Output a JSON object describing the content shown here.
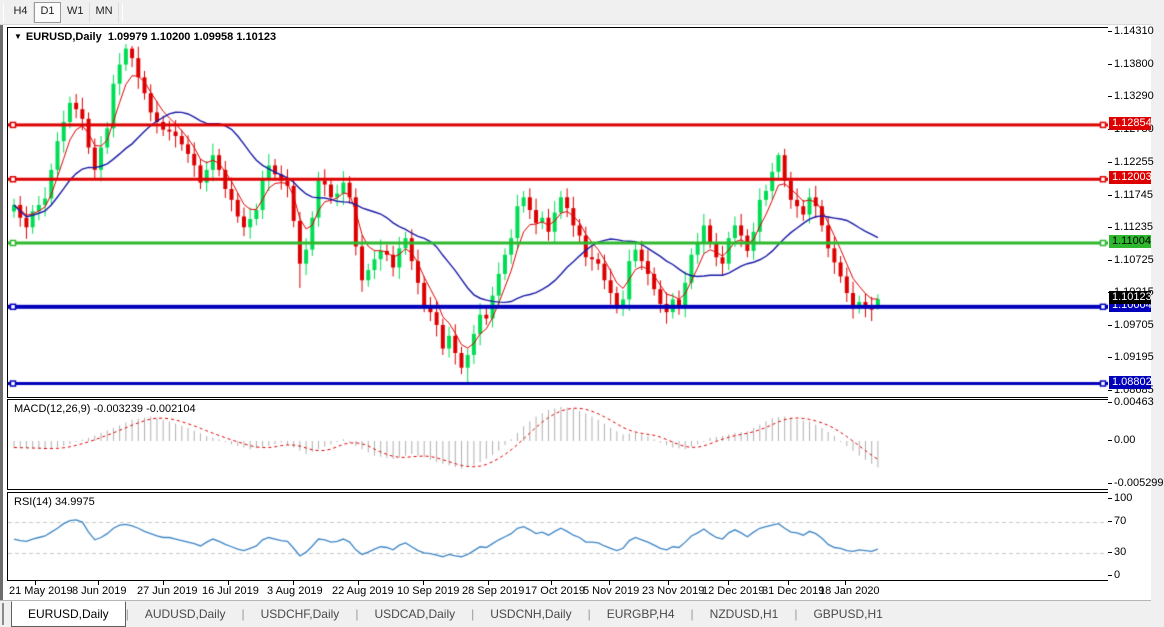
{
  "toolbar": {
    "buttons": [
      {
        "label": "H4",
        "active": false
      },
      {
        "label": "D1",
        "active": true
      },
      {
        "label": "W1",
        "active": false
      },
      {
        "label": "MN",
        "active": false
      }
    ]
  },
  "chart": {
    "dropdown_icon": "▼",
    "symbol_title": "EURUSD,Daily",
    "ohlc_title": "1.09979 1.10200 1.09958 1.10123"
  },
  "tabs": [
    {
      "label": "EURUSD,Daily",
      "active": true
    },
    {
      "label": "AUDUSD,Daily",
      "active": false
    },
    {
      "label": "USDCHF,Daily",
      "active": false
    },
    {
      "label": "USDCAD,Daily",
      "active": false
    },
    {
      "label": "USDCNH,Daily",
      "active": false
    },
    {
      "label": "EURGBP,H4",
      "active": false
    },
    {
      "label": "NZDUSD,H1",
      "active": false
    },
    {
      "label": "GBPUSD,H1",
      "active": false
    }
  ],
  "colors": {
    "bull": "#00DD55",
    "bear": "#DD0000",
    "fast_ma": "#DD0000",
    "slow_ma": "#1A1AA6",
    "hline_red": "#DD0000",
    "hline_green": "#2EB82E",
    "hline_blue": "#0000BB",
    "current_label_bg": "#000000",
    "macd_hist": "#B0B0B0",
    "macd_signal": "#DD0000",
    "rsi_line": "#3D85C6",
    "grid_dash": "#C9C9C9"
  },
  "chart_data": {
    "type": "candlestick",
    "symbol": "EURUSD",
    "timeframe": "Daily",
    "current_bar": {
      "open": 1.09979,
      "high": 1.102,
      "low": 1.09958,
      "close": 1.10123
    },
    "price_axis_ticks": [
      "1.14310",
      "1.13800",
      "1.13290",
      "1.12780",
      "1.12255",
      "1.11745",
      "1.11235",
      "1.10725",
      "1.10215",
      "1.09705",
      "1.09195",
      "1.08685"
    ],
    "x_axis_dates": [
      "21 May 2019",
      "8 Jun 2019",
      "27 Jun 2019",
      "16 Jul 2019",
      "3 Aug 2019",
      "22 Aug 2019",
      "10 Sep 2019",
      "28 Sep 2019",
      "17 Oct 2019",
      "5 Nov 2019",
      "23 Nov 2019",
      "12 Dec 2019",
      "31 Dec 2019",
      "18 Jan 2020"
    ],
    "hlines": [
      {
        "price": 1.12854,
        "label": "1.12854",
        "color": "#DD0000",
        "text_color": "#fff",
        "width": 3
      },
      {
        "price": 1.12003,
        "label": "1.12003",
        "color": "#DD0000",
        "text_color": "#fff",
        "width": 3
      },
      {
        "price": 1.11004,
        "label": "1.11004",
        "color": "#2EB82E",
        "text_color": "#000",
        "width": 3
      },
      {
        "price": 1.10004,
        "label": "1.10004",
        "color": "#0000BB",
        "text_color": "#fff",
        "width": 4
      },
      {
        "price": 1.08802,
        "label": "1.08802",
        "color": "#0000BB",
        "text_color": "#fff",
        "width": 3
      }
    ],
    "current_price_label": {
      "price": 1.10123,
      "label": "1.10123",
      "color": "#000000",
      "text_color": "#fff"
    },
    "price_range": {
      "top": 1.1431,
      "bottom": 1.08685
    },
    "candles": [
      [
        1.115,
        1.117,
        1.114,
        1.116
      ],
      [
        1.116,
        1.1174,
        1.1126,
        1.114
      ],
      [
        1.114,
        1.1158,
        1.1107,
        1.1125
      ],
      [
        1.1125,
        1.116,
        1.1115,
        1.115
      ],
      [
        1.115,
        1.1174,
        1.1136,
        1.116
      ],
      [
        1.116,
        1.1188,
        1.1142,
        1.117
      ],
      [
        1.117,
        1.1225,
        1.116,
        1.1215
      ],
      [
        1.1215,
        1.1274,
        1.1201,
        1.126
      ],
      [
        1.126,
        1.1308,
        1.1242,
        1.129
      ],
      [
        1.129,
        1.133,
        1.128,
        1.132
      ],
      [
        1.132,
        1.1334,
        1.1296,
        1.131
      ],
      [
        1.131,
        1.1328,
        1.1277,
        1.1295
      ],
      [
        1.1295,
        1.1305,
        1.124,
        1.125
      ],
      [
        1.125,
        1.1264,
        1.1201,
        1.1215
      ],
      [
        1.1215,
        1.1268,
        1.1197,
        1.125
      ],
      [
        1.125,
        1.129,
        1.124,
        1.128
      ],
      [
        1.128,
        1.1364,
        1.1266,
        1.135
      ],
      [
        1.135,
        1.1398,
        1.1332,
        1.138
      ],
      [
        1.138,
        1.1412,
        1.137,
        1.1405
      ],
      [
        1.1405,
        1.1409,
        1.1376,
        1.139
      ],
      [
        1.139,
        1.1408,
        1.1342,
        1.136
      ],
      [
        1.136,
        1.137,
        1.1325,
        1.1335
      ],
      [
        1.1335,
        1.1349,
        1.1291,
        1.1305
      ],
      [
        1.1305,
        1.1323,
        1.1272,
        1.129
      ],
      [
        1.129,
        1.13,
        1.1268,
        1.1278
      ],
      [
        1.1278,
        1.1292,
        1.1261,
        1.1275
      ],
      [
        1.1275,
        1.1293,
        1.125,
        1.1268
      ],
      [
        1.1268,
        1.1278,
        1.1245,
        1.1255
      ],
      [
        1.1255,
        1.1269,
        1.1226,
        1.124
      ],
      [
        1.124,
        1.1258,
        1.1204,
        1.1222
      ],
      [
        1.1222,
        1.1232,
        1.1185,
        1.1195
      ],
      [
        1.1195,
        1.1229,
        1.1181,
        1.1215
      ],
      [
        1.1215,
        1.1256,
        1.1197,
        1.1238
      ],
      [
        1.1238,
        1.1248,
        1.1205,
        1.1215
      ],
      [
        1.1215,
        1.1229,
        1.1171,
        1.1185
      ],
      [
        1.1185,
        1.1203,
        1.115,
        1.1168
      ],
      [
        1.1168,
        1.1178,
        1.1132,
        1.1142
      ],
      [
        1.1142,
        1.1156,
        1.1111,
        1.1125
      ],
      [
        1.1125,
        1.1156,
        1.1107,
        1.1138
      ],
      [
        1.1138,
        1.1162,
        1.1128,
        1.1152
      ],
      [
        1.1152,
        1.1214,
        1.1138,
        1.12
      ],
      [
        1.12,
        1.124,
        1.1182,
        1.1222
      ],
      [
        1.1222,
        1.1232,
        1.1198,
        1.1208
      ],
      [
        1.1208,
        1.1222,
        1.1184,
        1.1198
      ],
      [
        1.1198,
        1.1216,
        1.1172,
        1.119
      ],
      [
        1.119,
        1.12,
        1.1125,
        1.1135
      ],
      [
        1.1135,
        1.1149,
        1.103,
        1.1068
      ],
      [
        1.1068,
        1.1108,
        1.105,
        1.109
      ],
      [
        1.109,
        1.115,
        1.108,
        1.114
      ],
      [
        1.114,
        1.1212,
        1.1126,
        1.1198
      ],
      [
        1.1198,
        1.1216,
        1.1174,
        1.1192
      ],
      [
        1.1192,
        1.1202,
        1.1162,
        1.1172
      ],
      [
        1.1172,
        1.1192,
        1.1158,
        1.1178
      ],
      [
        1.1178,
        1.1213,
        1.116,
        1.1195
      ],
      [
        1.1195,
        1.1205,
        1.1162,
        1.1172
      ],
      [
        1.1172,
        1.1186,
        1.1081,
        1.1095
      ],
      [
        1.1095,
        1.1113,
        1.1024,
        1.1042
      ],
      [
        1.1042,
        1.1068,
        1.1032,
        1.1058
      ],
      [
        1.1058,
        1.1089,
        1.1044,
        1.1075
      ],
      [
        1.1075,
        1.1106,
        1.1057,
        1.1088
      ],
      [
        1.1088,
        1.1098,
        1.1072,
        1.1082
      ],
      [
        1.1082,
        1.1096,
        1.1048,
        1.1062
      ],
      [
        1.1062,
        1.111,
        1.1044,
        1.1092
      ],
      [
        1.1092,
        1.1118,
        1.1082,
        1.1108
      ],
      [
        1.1108,
        1.1122,
        1.1058,
        1.1072
      ],
      [
        1.1072,
        1.109,
        1.102,
        1.1038
      ],
      [
        1.1038,
        1.1048,
        1.0992,
        1.1002
      ],
      [
        1.1002,
        1.1016,
        1.0978,
        1.0992
      ],
      [
        1.0992,
        1.101,
        1.0954,
        1.0972
      ],
      [
        1.0972,
        1.0982,
        1.0925,
        1.0935
      ],
      [
        1.0935,
        1.0969,
        1.0921,
        1.0955
      ],
      [
        1.0955,
        1.0973,
        1.091,
        1.0928
      ],
      [
        1.0928,
        1.0938,
        1.0895,
        1.0905
      ],
      [
        1.0905,
        1.0935,
        1.0879,
        1.0925
      ],
      [
        1.0925,
        1.0972,
        1.0911,
        1.0958
      ],
      [
        1.0958,
        1.1006,
        1.094,
        1.0988
      ],
      [
        1.0988,
        1.0998,
        1.0972,
        1.0982
      ],
      [
        1.0982,
        1.1032,
        1.0968,
        1.1018
      ],
      [
        1.1018,
        1.107,
        1.1,
        1.1052
      ],
      [
        1.1052,
        1.1092,
        1.1042,
        1.1082
      ],
      [
        1.1082,
        1.1122,
        1.1068,
        1.1108
      ],
      [
        1.1108,
        1.1176,
        1.109,
        1.1158
      ],
      [
        1.1158,
        1.1182,
        1.1148,
        1.1172
      ],
      [
        1.1172,
        1.1186,
        1.1138,
        1.1152
      ],
      [
        1.1152,
        1.117,
        1.1114,
        1.1132
      ],
      [
        1.1132,
        1.115,
        1.1122,
        1.114
      ],
      [
        1.114,
        1.1154,
        1.1104,
        1.1118
      ],
      [
        1.1118,
        1.1166,
        1.11,
        1.1148
      ],
      [
        1.1148,
        1.1182,
        1.1138,
        1.1172
      ],
      [
        1.1172,
        1.1186,
        1.1141,
        1.1155
      ],
      [
        1.1155,
        1.1173,
        1.111,
        1.1128
      ],
      [
        1.1128,
        1.1138,
        1.1102,
        1.1112
      ],
      [
        1.1112,
        1.1126,
        1.1064,
        1.1078
      ],
      [
        1.1078,
        1.1096,
        1.1057,
        1.1075
      ],
      [
        1.1075,
        1.1085,
        1.1058,
        1.1068
      ],
      [
        1.1068,
        1.1082,
        1.1028,
        1.1042
      ],
      [
        1.1042,
        1.106,
        1.1004,
        1.1022
      ],
      [
        1.1022,
        1.1032,
        1.099,
        1.1
      ],
      [
        1.1,
        1.1026,
        1.0986,
        1.1012
      ],
      [
        1.1012,
        1.109,
        1.0994,
        1.1072
      ],
      [
        1.1072,
        1.11,
        1.1062,
        1.109
      ],
      [
        1.109,
        1.1104,
        1.1058,
        1.1072
      ],
      [
        1.1072,
        1.109,
        1.1034,
        1.1052
      ],
      [
        1.1052,
        1.1062,
        1.1018,
        1.1028
      ],
      [
        1.1028,
        1.1042,
        1.0991,
        1.1005
      ],
      [
        1.1005,
        1.1023,
        1.0974,
        1.0992
      ],
      [
        1.0992,
        1.1022,
        1.0982,
        1.1012
      ],
      [
        1.1012,
        1.1026,
        1.0988,
        1.1002
      ],
      [
        1.1002,
        1.1056,
        1.0984,
        1.1038
      ],
      [
        1.1038,
        1.1092,
        1.1028,
        1.1082
      ],
      [
        1.1082,
        1.1116,
        1.1068,
        1.1102
      ],
      [
        1.1102,
        1.1146,
        1.1084,
        1.1128
      ],
      [
        1.1128,
        1.1138,
        1.1092,
        1.1102
      ],
      [
        1.1102,
        1.1116,
        1.1064,
        1.1078
      ],
      [
        1.1078,
        1.1096,
        1.105,
        1.1068
      ],
      [
        1.1068,
        1.1118,
        1.1058,
        1.1108
      ],
      [
        1.1108,
        1.1142,
        1.1094,
        1.1128
      ],
      [
        1.1128,
        1.1146,
        1.1094,
        1.1112
      ],
      [
        1.1112,
        1.1122,
        1.1078,
        1.1088
      ],
      [
        1.1088,
        1.1132,
        1.1074,
        1.1118
      ],
      [
        1.1118,
        1.1186,
        1.11,
        1.1168
      ],
      [
        1.1168,
        1.1192,
        1.1158,
        1.1182
      ],
      [
        1.1182,
        1.1226,
        1.1168,
        1.1212
      ],
      [
        1.1212,
        1.1242,
        1.1198,
        1.1238
      ],
      [
        1.1238,
        1.1248,
        1.1188,
        1.1198
      ],
      [
        1.1198,
        1.1212,
        1.1154,
        1.1168
      ],
      [
        1.1168,
        1.1186,
        1.114,
        1.1158
      ],
      [
        1.1158,
        1.1168,
        1.1135,
        1.1145
      ],
      [
        1.1145,
        1.1186,
        1.1131,
        1.1172
      ],
      [
        1.1172,
        1.119,
        1.114,
        1.1158
      ],
      [
        1.1158,
        1.1168,
        1.1118,
        1.1128
      ],
      [
        1.1128,
        1.1142,
        1.1078,
        1.1092
      ],
      [
        1.1092,
        1.111,
        1.1052,
        1.107
      ],
      [
        1.107,
        1.108,
        1.1038,
        1.1048
      ],
      [
        1.1048,
        1.1062,
        1.1008,
        1.1022
      ],
      [
        1.1022,
        1.104,
        1.0982,
        1.1
      ],
      [
        1.1,
        1.1018,
        1.099,
        1.1008
      ],
      [
        1.1008,
        1.1022,
        1.0984,
        1.0998
      ],
      [
        1.0998,
        1.1016,
        1.0978,
        1.0996
      ],
      [
        1.09979,
        1.102,
        1.09958,
        1.10123
      ]
    ],
    "indicators": {
      "macd": {
        "label": "MACD(12,26,9)",
        "values_text": "-0.003239 -0.002104",
        "main_value": -0.003239,
        "signal_value": -0.002104,
        "scale_labels": [
          "0.00463",
          "0.00",
          "-0.005299"
        ],
        "scale_values": [
          0.00463,
          0.0,
          -0.005299
        ],
        "main": [
          -0.0008,
          -0.00084,
          -0.00088,
          -0.00092,
          -0.00096,
          -0.001,
          -0.00087,
          -0.00073,
          -0.0006,
          -0.00035,
          -0.0001,
          0.00015,
          0.0004,
          0.0007,
          0.001,
          0.0013,
          0.0016,
          0.00193,
          0.00227,
          0.0026,
          0.00273,
          0.00287,
          0.003,
          0.0028,
          0.0026,
          0.0024,
          0.00213,
          0.00187,
          0.0016,
          0.00127,
          0.00093,
          0.0006,
          0.0004,
          0.0002,
          -0.0001,
          -0.0004,
          -0.0006,
          -0.0008,
          -0.001,
          -0.00087,
          -0.00073,
          -0.0006,
          -0.0004,
          -0.0002,
          -0.0005,
          -0.0008,
          -0.0012,
          -0.0016,
          -0.0013,
          -0.001,
          -0.0007,
          -0.0004,
          -0.0001,
          0.0002,
          -0.0002,
          -0.0006,
          -0.001,
          -0.0014,
          -0.0018,
          -0.00193,
          -0.00207,
          -0.0022,
          -0.002,
          -0.0018,
          -0.0016,
          -0.0018,
          -0.002,
          -0.0023,
          -0.0026,
          -0.0028,
          -0.003,
          -0.0032,
          -0.0034,
          -0.0032,
          -0.003,
          -0.0026,
          -0.0022,
          -0.0017,
          -0.0012,
          -0.0005,
          0.0002,
          0.001,
          0.0018,
          0.0024,
          0.003,
          0.0034,
          0.0038,
          0.004,
          0.0042,
          0.0041,
          0.004,
          0.0037,
          0.0034,
          0.003,
          0.0026,
          0.0021,
          0.0016,
          0.0012,
          0.0008,
          0.0009,
          0.001,
          0.0008,
          0.0006,
          0.0002,
          -0.0002,
          -0.0005,
          -0.0008,
          -0.0009,
          -0.001,
          -0.0007,
          -0.0004,
          0.0,
          0.0004,
          0.0005,
          0.0006,
          0.0008,
          0.001,
          0.0011,
          0.0012,
          0.0016,
          0.002,
          0.0024,
          0.0028,
          0.0029,
          0.003,
          0.0028,
          0.0026,
          0.0025,
          0.0024,
          0.002,
          0.0016,
          0.0011,
          0.0006,
          0.0,
          -0.0006,
          -0.0012,
          -0.0018,
          -0.0023,
          -0.0028,
          -0.003239
        ]
      },
      "rsi": {
        "label": "RSI(14)",
        "value_text": "34.9975",
        "value": 34.9975,
        "scale_labels": [
          "100",
          "70",
          "30",
          "0"
        ],
        "scale_values": [
          100,
          70,
          30,
          0
        ],
        "levels": [
          70,
          30
        ],
        "values": [
          48,
          46,
          45,
          48,
          50,
          52,
          57,
          62,
          68,
          72,
          73,
          70,
          57,
          47,
          50,
          55,
          62,
          66,
          67,
          65,
          62,
          58,
          55,
          52,
          50,
          50,
          48,
          46,
          44,
          42,
          39,
          44,
          48,
          45,
          41,
          38,
          35,
          33,
          36,
          39,
          47,
          50,
          48,
          46,
          45,
          36,
          26,
          31,
          39,
          48,
          47,
          44,
          45,
          48,
          44,
          34,
          28,
          31,
          35,
          38,
          37,
          34,
          40,
          43,
          38,
          33,
          30,
          29,
          27,
          25,
          28,
          26,
          25,
          28,
          33,
          38,
          37,
          42,
          47,
          51,
          55,
          62,
          64,
          60,
          55,
          57,
          53,
          58,
          62,
          58,
          53,
          50,
          44,
          44,
          43,
          39,
          36,
          33,
          36,
          46,
          50,
          47,
          44,
          40,
          36,
          34,
          38,
          37,
          44,
          52,
          56,
          61,
          55,
          50,
          48,
          56,
          60,
          56,
          51,
          57,
          62,
          64,
          66,
          68,
          62,
          57,
          56,
          53,
          58,
          55,
          49,
          41,
          37,
          36,
          33,
          32,
          34,
          33,
          32,
          34.9975
        ]
      }
    }
  }
}
